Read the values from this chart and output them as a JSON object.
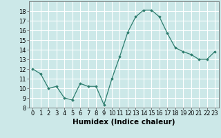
{
  "x": [
    0,
    1,
    2,
    3,
    4,
    5,
    6,
    7,
    8,
    9,
    10,
    11,
    12,
    13,
    14,
    15,
    16,
    17,
    18,
    19,
    20,
    21,
    22,
    23
  ],
  "y": [
    12.0,
    11.5,
    10.0,
    10.2,
    9.0,
    8.8,
    10.5,
    10.2,
    10.2,
    8.3,
    11.0,
    13.3,
    15.8,
    17.4,
    18.1,
    18.1,
    17.4,
    15.7,
    14.2,
    13.8,
    13.5,
    13.0,
    13.0,
    13.8
  ],
  "xlim": [
    -0.5,
    23.5
  ],
  "ylim": [
    8,
    19
  ],
  "yticks": [
    8,
    9,
    10,
    11,
    12,
    13,
    14,
    15,
    16,
    17,
    18
  ],
  "xticks": [
    0,
    1,
    2,
    3,
    4,
    5,
    6,
    7,
    8,
    9,
    10,
    11,
    12,
    13,
    14,
    15,
    16,
    17,
    18,
    19,
    20,
    21,
    22,
    23
  ],
  "xlabel": "Humidex (Indice chaleur)",
  "line_color": "#2e7d6e",
  "marker": "D",
  "marker_size": 1.8,
  "bg_color": "#cce8e8",
  "grid_color": "#ffffff",
  "tick_label_fontsize": 6.0,
  "xlabel_fontsize": 7.5
}
